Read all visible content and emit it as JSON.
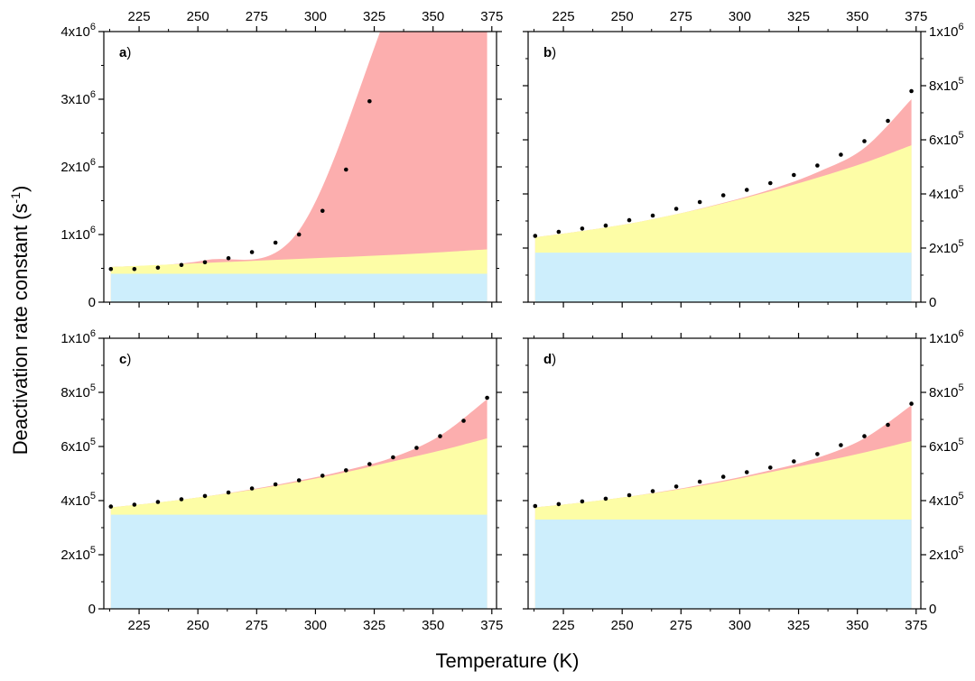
{
  "figure": {
    "ylabel_text": "Deactivation rate constant (s",
    "ylabel_sup": "-1",
    "ylabel_close": ")",
    "xlabel": "Temperature (K)"
  },
  "chart_data": [
    {
      "panel": "a",
      "label": "a",
      "type": "area",
      "xlabel": "Temperature (K)",
      "ylabel": "Deactivation rate constant (s-1)",
      "xlim": [
        210,
        377
      ],
      "ylim": [
        0,
        4000000
      ],
      "x_ticks": [
        "225",
        "250",
        "275",
        "300",
        "325",
        "350",
        "375"
      ],
      "y_ticks": [
        "0",
        "1x10^6",
        "2x10^6",
        "3x10^6",
        "4x10^6"
      ],
      "y_axis_side": "left",
      "colors": {
        "base": "#cdeefc",
        "middle": "#fdfda6",
        "top": "#fcaeae"
      },
      "x": [
        213,
        253,
        293,
        333,
        373
      ],
      "layers": {
        "base": [
          420000,
          420000,
          420000,
          420000,
          420000
        ],
        "middle": [
          520000,
          580000,
          640000,
          700000,
          780000
        ],
        "top": [
          520000,
          620000,
          1060000,
          4500000,
          8000000
        ]
      },
      "points": [
        [
          213,
          490000
        ],
        [
          223,
          490000
        ],
        [
          233,
          510000
        ],
        [
          243,
          550000
        ],
        [
          253,
          590000
        ],
        [
          263,
          650000
        ],
        [
          273,
          740000
        ],
        [
          283,
          880000
        ],
        [
          293,
          1000000
        ],
        [
          303,
          1350000
        ],
        [
          313,
          1960000
        ],
        [
          323,
          2970000
        ]
      ]
    },
    {
      "panel": "b",
      "label": "b",
      "type": "area",
      "xlabel": "Temperature (K)",
      "ylabel": "Deactivation rate constant (s-1)",
      "xlim": [
        210,
        377
      ],
      "ylim": [
        0,
        1000000
      ],
      "x_ticks": [
        "225",
        "250",
        "275",
        "300",
        "325",
        "350",
        "375"
      ],
      "y_ticks": [
        "0",
        "2x10^5",
        "4x10^5",
        "6x10^5",
        "8x10^5",
        "1x10^6"
      ],
      "y_axis_side": "right",
      "colors": {
        "base": "#cdeefc",
        "middle": "#fdfda6",
        "top": "#fcaeae"
      },
      "x": [
        213,
        233,
        253,
        273,
        293,
        313,
        333,
        353,
        373
      ],
      "layers": {
        "base": [
          183000,
          183000,
          183000,
          183000,
          183000,
          183000,
          183000,
          183000,
          183000
        ],
        "middle": [
          240000,
          263000,
          290000,
          325000,
          365000,
          410000,
          460000,
          515000,
          580000
        ],
        "top": [
          240000,
          263000,
          290000,
          325000,
          367000,
          416000,
          480000,
          570000,
          750000
        ]
      },
      "points": [
        [
          213,
          245000
        ],
        [
          223,
          260000
        ],
        [
          233,
          272000
        ],
        [
          243,
          283000
        ],
        [
          253,
          303000
        ],
        [
          263,
          320000
        ],
        [
          273,
          345000
        ],
        [
          283,
          370000
        ],
        [
          293,
          395000
        ],
        [
          303,
          415000
        ],
        [
          313,
          440000
        ],
        [
          323,
          470000
        ],
        [
          333,
          505000
        ],
        [
          343,
          545000
        ],
        [
          353,
          595000
        ],
        [
          363,
          670000
        ],
        [
          373,
          780000
        ]
      ]
    },
    {
      "panel": "c",
      "label": "c",
      "type": "area",
      "xlabel": "Temperature (K)",
      "ylabel": "Deactivation rate constant (s-1)",
      "xlim": [
        210,
        377
      ],
      "ylim": [
        0,
        1000000
      ],
      "x_ticks": [
        "225",
        "250",
        "275",
        "300",
        "325",
        "350",
        "375"
      ],
      "y_ticks": [
        "0",
        "2x10^5",
        "4x10^5",
        "6x10^5",
        "8x10^5",
        "1x10^6"
      ],
      "y_axis_side": "left",
      "colors": {
        "base": "#cdeefc",
        "middle": "#fdfda6",
        "top": "#fcaeae"
      },
      "x": [
        213,
        233,
        253,
        273,
        293,
        313,
        333,
        353,
        373
      ],
      "layers": {
        "base": [
          348000,
          348000,
          348000,
          348000,
          348000,
          348000,
          348000,
          348000,
          348000
        ],
        "middle": [
          375000,
          393000,
          415000,
          440000,
          470000,
          505000,
          545000,
          585000,
          630000
        ],
        "top": [
          375000,
          393000,
          415000,
          442000,
          474000,
          512000,
          560000,
          640000,
          775000
        ]
      },
      "points": [
        [
          213,
          378000
        ],
        [
          223,
          385000
        ],
        [
          233,
          395000
        ],
        [
          243,
          405000
        ],
        [
          253,
          417000
        ],
        [
          263,
          430000
        ],
        [
          273,
          445000
        ],
        [
          283,
          460000
        ],
        [
          293,
          475000
        ],
        [
          303,
          492000
        ],
        [
          313,
          512000
        ],
        [
          323,
          535000
        ],
        [
          333,
          560000
        ],
        [
          343,
          595000
        ],
        [
          353,
          638000
        ],
        [
          363,
          695000
        ],
        [
          373,
          780000
        ]
      ]
    },
    {
      "panel": "d",
      "label": "d",
      "type": "area",
      "xlabel": "Temperature (K)",
      "ylabel": "Deactivation rate constant (s-1)",
      "xlim": [
        210,
        377
      ],
      "ylim": [
        0,
        1000000
      ],
      "x_ticks": [
        "225",
        "250",
        "275",
        "300",
        "325",
        "350",
        "375"
      ],
      "y_ticks": [
        "0",
        "2x10^5",
        "4x10^5",
        "6x10^5",
        "8x10^5",
        "1x10^6"
      ],
      "y_axis_side": "right",
      "colors": {
        "base": "#cdeefc",
        "middle": "#fdfda6",
        "top": "#fcaeae"
      },
      "x": [
        213,
        233,
        253,
        273,
        293,
        313,
        333,
        353,
        373
      ],
      "layers": {
        "base": [
          330000,
          330000,
          330000,
          330000,
          330000,
          330000,
          330000,
          330000,
          330000
        ],
        "middle": [
          375000,
          393000,
          415000,
          440000,
          470000,
          505000,
          540000,
          578000,
          620000
        ],
        "top": [
          375000,
          393000,
          415000,
          442000,
          474000,
          512000,
          558000,
          630000,
          752000
        ]
      },
      "points": [
        [
          213,
          380000
        ],
        [
          223,
          387000
        ],
        [
          233,
          397000
        ],
        [
          243,
          407000
        ],
        [
          253,
          420000
        ],
        [
          263,
          435000
        ],
        [
          273,
          452000
        ],
        [
          283,
          470000
        ],
        [
          293,
          488000
        ],
        [
          303,
          505000
        ],
        [
          313,
          522000
        ],
        [
          323,
          545000
        ],
        [
          333,
          572000
        ],
        [
          343,
          605000
        ],
        [
          353,
          638000
        ],
        [
          363,
          680000
        ],
        [
          373,
          758000
        ]
      ]
    }
  ]
}
